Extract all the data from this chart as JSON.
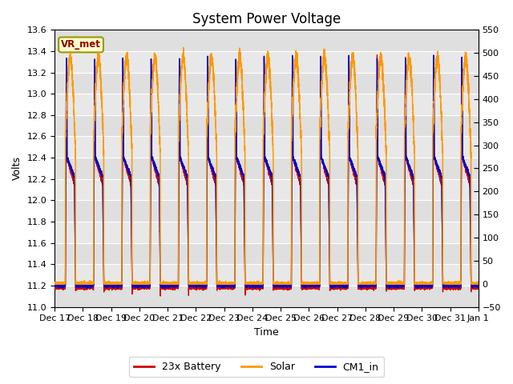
{
  "title": "System Power Voltage",
  "xlabel": "Time",
  "ylabel_left": "Volts",
  "ylim_left": [
    11.0,
    13.6
  ],
  "ylim_right": [
    -50,
    550
  ],
  "yticks_left": [
    11.0,
    11.2,
    11.4,
    11.6,
    11.8,
    12.0,
    12.2,
    12.4,
    12.6,
    12.8,
    13.0,
    13.2,
    13.4,
    13.6
  ],
  "yticks_right": [
    -50,
    0,
    50,
    100,
    150,
    200,
    250,
    300,
    350,
    400,
    450,
    500,
    550
  ],
  "title_fontsize": 12,
  "label_fontsize": 9,
  "tick_fontsize": 8,
  "vr_met_label": "VR_met",
  "legend_entries": [
    "23x Battery",
    "Solar",
    "CM1_in"
  ],
  "legend_colors": [
    "#cc0000",
    "#ff9900",
    "#0000cc"
  ],
  "n_days": 15,
  "x_tick_labels": [
    "Dec 17",
    "Dec 18",
    "Dec 19",
    "Dec 20",
    "Dec 21",
    "Dec 22",
    "Dec 23",
    "Dec 24",
    "Dec 25",
    "Dec 26",
    "Dec 27",
    "Dec 28",
    "Dec 29",
    "Dec 30",
    "Dec 31",
    "Jan 1"
  ],
  "fig_facecolor": "#ffffff",
  "ax_facecolor": "#e8e8e8",
  "grid_color": "#ffffff",
  "battery_night": 11.18,
  "battery_peak": 13.35,
  "battery_plateau": 12.4,
  "battery_min": 11.12,
  "solar_peak": 490,
  "cm1_night": 11.2,
  "cm1_peak": 13.35,
  "cm1_plateau": 12.4
}
